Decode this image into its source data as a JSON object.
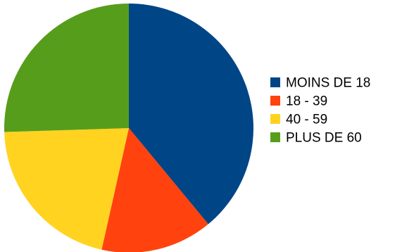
{
  "chart_data": {
    "type": "pie",
    "title": "",
    "slices": [
      {
        "label": "MOINS DE 18",
        "value": 39.0,
        "color": "#004586"
      },
      {
        "label": "18 - 39",
        "value": 14.5,
        "color": "#ff420e"
      },
      {
        "label": "40 - 59",
        "value": 21.0,
        "color": "#ffd320"
      },
      {
        "label": "PLUS DE 60",
        "value": 25.5,
        "color": "#579d1c"
      }
    ],
    "start_angle_deg": 0,
    "direction": "clockwise",
    "legend": {
      "position": "right",
      "marker": "square"
    }
  }
}
